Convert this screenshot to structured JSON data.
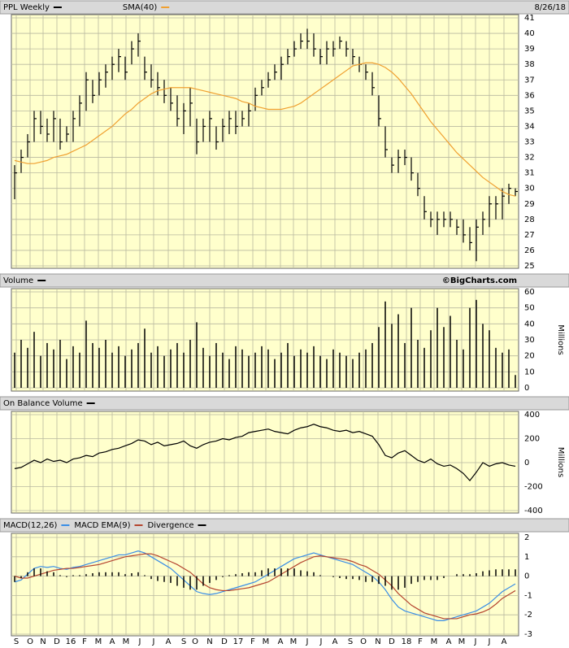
{
  "chart_data": [
    {
      "type": "hlc",
      "date": "8/26/18",
      "x": [
        0,
        2,
        4,
        6,
        8,
        10,
        12,
        14,
        16,
        18,
        20,
        22,
        24,
        26,
        28,
        30,
        32,
        34,
        36,
        38,
        40,
        42,
        44,
        46,
        48,
        50,
        52,
        54,
        56,
        58,
        60,
        62,
        64,
        66,
        68,
        70,
        72,
        74,
        76,
        78,
        80,
        82,
        84,
        86,
        88,
        90,
        92,
        94,
        96,
        98,
        100,
        102,
        104,
        106,
        108,
        110,
        112,
        114,
        116,
        118,
        120,
        122,
        124,
        126,
        128,
        130,
        132,
        134,
        136,
        138,
        140,
        142,
        144,
        146,
        148,
        150,
        152,
        154
      ],
      "xlim": [
        -1,
        155
      ],
      "ylim": [
        25,
        41
      ],
      "yticks": [
        25,
        26,
        27,
        28,
        29,
        30,
        31,
        32,
        33,
        34,
        35,
        36,
        37,
        38,
        39,
        40,
        41
      ],
      "grid": true,
      "series": [
        {
          "name": "PPL Weekly",
          "color": "#000000",
          "high": [
            31.5,
            32.5,
            33.5,
            35,
            35,
            34.5,
            35,
            34.5,
            34,
            35,
            36,
            37.5,
            37,
            37.5,
            38,
            38.5,
            39,
            38.5,
            39.5,
            40,
            38.5,
            38,
            37.5,
            37,
            36.5,
            36,
            35.5,
            36.5,
            34.5,
            34.5,
            35,
            34,
            34.5,
            35,
            35,
            35,
            35.5,
            36.5,
            37,
            37.5,
            38,
            38.5,
            39,
            39.5,
            40,
            40.3,
            40,
            39,
            39.5,
            39.5,
            39.8,
            39.5,
            39,
            38.5,
            38,
            37.5,
            36,
            34,
            32,
            32.5,
            32.5,
            32,
            31,
            29.5,
            28.5,
            28.5,
            28.5,
            28.5,
            28,
            28,
            27.5,
            28,
            28.5,
            29.5,
            29.5,
            30,
            30.3,
            30
          ],
          "low": [
            29.3,
            31,
            32,
            33,
            33.5,
            33,
            33,
            32.5,
            33,
            33,
            34,
            35,
            35.5,
            36,
            36.5,
            37,
            37.5,
            37,
            38,
            38.5,
            37,
            36.5,
            36,
            35.5,
            35,
            34,
            33.5,
            34,
            32.2,
            33,
            33,
            32.5,
            33,
            33.5,
            33.5,
            34,
            34,
            35,
            36,
            36.5,
            37,
            37,
            38,
            38.5,
            39,
            39,
            38.5,
            38,
            38,
            38.5,
            39,
            38.5,
            38,
            37.5,
            37,
            36,
            34,
            32,
            31,
            31,
            31.5,
            30.5,
            29.5,
            28,
            27.5,
            27,
            27.5,
            27.5,
            27,
            26.5,
            26,
            25.3,
            27,
            27.5,
            28,
            28,
            29,
            29.5
          ],
          "close": [
            31,
            32,
            33,
            34.5,
            34,
            33.5,
            34.5,
            33,
            33.5,
            34.5,
            35.5,
            37,
            36,
            37,
            37.5,
            38,
            38.5,
            37.5,
            39,
            39.5,
            37.5,
            37,
            36.5,
            36,
            35.5,
            34.5,
            35,
            35.5,
            33,
            34,
            34.5,
            33,
            34,
            34.5,
            34,
            34.5,
            35,
            36,
            36.5,
            37,
            37.5,
            38,
            38.5,
            39,
            39.5,
            39.5,
            39,
            38.5,
            39,
            39,
            39.5,
            39,
            38.5,
            38,
            37.5,
            36.5,
            34.5,
            32.5,
            31.5,
            32,
            32,
            31,
            30,
            28.5,
            28,
            28,
            28,
            28,
            27.5,
            27,
            26.5,
            27.5,
            28,
            29,
            29,
            29.5,
            30,
            29.8
          ]
        },
        {
          "name": "SMA(40)",
          "color": "#f0a030",
          "type": "line",
          "values": [
            31.8,
            31.7,
            31.6,
            31.6,
            31.7,
            31.8,
            32,
            32.1,
            32.2,
            32.4,
            32.6,
            32.8,
            33.1,
            33.4,
            33.7,
            34,
            34.4,
            34.8,
            35.1,
            35.5,
            35.8,
            36.1,
            36.3,
            36.4,
            36.5,
            36.5,
            36.5,
            36.5,
            36.4,
            36.3,
            36.2,
            36.1,
            36,
            35.9,
            35.8,
            35.6,
            35.5,
            35.3,
            35.2,
            35.1,
            35.1,
            35.1,
            35.2,
            35.3,
            35.5,
            35.8,
            36.1,
            36.4,
            36.7,
            37,
            37.3,
            37.6,
            37.9,
            38,
            38.1,
            38.1,
            38,
            37.8,
            37.5,
            37.1,
            36.6,
            36.1,
            35.5,
            34.9,
            34.3,
            33.8,
            33.3,
            32.8,
            32.3,
            31.9,
            31.5,
            31.1,
            30.7,
            30.4,
            30.1,
            29.8,
            29.6,
            29.5
          ]
        }
      ]
    },
    {
      "type": "bar",
      "credit": "©BigCharts.com",
      "ylabel": "Millions",
      "ylim": [
        0,
        60
      ],
      "yticks": [
        0,
        10,
        20,
        30,
        40,
        50,
        60
      ],
      "grid": true,
      "series": [
        {
          "name": "Volume",
          "color": "#000000",
          "values": [
            22,
            30,
            25,
            35,
            20,
            28,
            24,
            30,
            18,
            26,
            22,
            42,
            28,
            25,
            30,
            22,
            26,
            20,
            24,
            28,
            37,
            22,
            26,
            20,
            24,
            28,
            22,
            30,
            41,
            25,
            20,
            28,
            22,
            18,
            26,
            24,
            20,
            22,
            26,
            24,
            18,
            22,
            28,
            20,
            24,
            22,
            26,
            20,
            18,
            24,
            22,
            20,
            18,
            22,
            24,
            28,
            38,
            54,
            40,
            46,
            28,
            50,
            30,
            25,
            36,
            50,
            38,
            45,
            30,
            24,
            50,
            55,
            40,
            36,
            25,
            22,
            24,
            8
          ]
        }
      ]
    },
    {
      "type": "line",
      "ylabel": "Millions",
      "ylim": [
        -400,
        400
      ],
      "yticks": [
        -400,
        -200,
        0,
        200,
        400
      ],
      "grid": true,
      "series": [
        {
          "name": "On Balance Volume",
          "color": "#000000",
          "values": [
            -50,
            -40,
            -10,
            20,
            0,
            30,
            10,
            20,
            0,
            30,
            40,
            60,
            50,
            80,
            90,
            110,
            120,
            140,
            160,
            190,
            180,
            150,
            170,
            140,
            150,
            160,
            180,
            140,
            120,
            150,
            170,
            180,
            200,
            190,
            210,
            220,
            250,
            260,
            270,
            280,
            260,
            250,
            240,
            270,
            290,
            300,
            320,
            300,
            290,
            270,
            260,
            270,
            250,
            260,
            240,
            220,
            150,
            60,
            40,
            80,
            100,
            60,
            20,
            0,
            30,
            -10,
            -30,
            -20,
            -50,
            -90,
            -150,
            -80,
            0,
            -30,
            -10,
            0,
            -20,
            -30
          ]
        }
      ]
    },
    {
      "type": "line",
      "ylim": [
        -3,
        2
      ],
      "yticks": [
        -3,
        -2,
        -1,
        0,
        1,
        2
      ],
      "grid": true,
      "xticks": [
        {
          "value": 0.5,
          "label": "S"
        },
        {
          "value": 4.75,
          "label": "O"
        },
        {
          "value": 8.75,
          "label": "N"
        },
        {
          "value": 13,
          "label": "D"
        },
        {
          "value": 17.25,
          "label": "16"
        },
        {
          "value": 21.5,
          "label": "F"
        },
        {
          "value": 25.75,
          "label": "M"
        },
        {
          "value": 30,
          "label": "A"
        },
        {
          "value": 34.25,
          "label": "M"
        },
        {
          "value": 38.5,
          "label": "J"
        },
        {
          "value": 42.75,
          "label": "J"
        },
        {
          "value": 47.25,
          "label": "A"
        },
        {
          "value": 52,
          "label": "S"
        },
        {
          "value": 55.5,
          "label": "O"
        },
        {
          "value": 60,
          "label": "N"
        },
        {
          "value": 64.5,
          "label": "D"
        },
        {
          "value": 68.75,
          "label": "17"
        },
        {
          "value": 73.25,
          "label": "F"
        },
        {
          "value": 77.25,
          "label": "M"
        },
        {
          "value": 81.75,
          "label": "A"
        },
        {
          "value": 85.75,
          "label": "M"
        },
        {
          "value": 90,
          "label": "J"
        },
        {
          "value": 94.25,
          "label": "J"
        },
        {
          "value": 98.5,
          "label": "A"
        },
        {
          "value": 103.25,
          "label": "S"
        },
        {
          "value": 107.25,
          "label": "O"
        },
        {
          "value": 111.75,
          "label": "N"
        },
        {
          "value": 116,
          "label": "D"
        },
        {
          "value": 120.5,
          "label": "18"
        },
        {
          "value": 124.75,
          "label": "F"
        },
        {
          "value": 129,
          "label": "M"
        },
        {
          "value": 133.5,
          "label": "A"
        },
        {
          "value": 137.5,
          "label": "M"
        },
        {
          "value": 141.75,
          "label": "J"
        },
        {
          "value": 146,
          "label": "J"
        },
        {
          "value": 150.5,
          "label": "A"
        }
      ],
      "series": [
        {
          "name": "MACD(12,26)",
          "color": "#3a8ee6",
          "values": [
            -0.3,
            -0.2,
            0.1,
            0.4,
            0.5,
            0.45,
            0.5,
            0.4,
            0.35,
            0.45,
            0.5,
            0.6,
            0.7,
            0.8,
            0.9,
            1.0,
            1.1,
            1.1,
            1.2,
            1.3,
            1.2,
            1.0,
            0.8,
            0.6,
            0.4,
            0.1,
            -0.2,
            -0.5,
            -0.8,
            -0.9,
            -0.95,
            -0.9,
            -0.8,
            -0.7,
            -0.6,
            -0.5,
            -0.4,
            -0.3,
            -0.1,
            0.1,
            0.3,
            0.5,
            0.7,
            0.9,
            1.0,
            1.1,
            1.2,
            1.1,
            1.0,
            0.9,
            0.8,
            0.7,
            0.6,
            0.4,
            0.2,
            0,
            -0.3,
            -0.7,
            -1.2,
            -1.6,
            -1.8,
            -1.9,
            -2.0,
            -2.1,
            -2.2,
            -2.3,
            -2.3,
            -2.2,
            -2.1,
            -2.0,
            -1.9,
            -1.8,
            -1.6,
            -1.4,
            -1.1,
            -0.8,
            -0.6,
            -0.4
          ]
        },
        {
          "name": "MACD EMA(9)",
          "color": "#b5452f",
          "values": [
            0,
            -0.1,
            -0.1,
            0,
            0.1,
            0.2,
            0.3,
            0.35,
            0.4,
            0.4,
            0.45,
            0.5,
            0.55,
            0.6,
            0.7,
            0.8,
            0.9,
            1.0,
            1.05,
            1.1,
            1.15,
            1.15,
            1.05,
            0.9,
            0.75,
            0.6,
            0.4,
            0.2,
            -0.1,
            -0.4,
            -0.6,
            -0.7,
            -0.75,
            -0.75,
            -0.7,
            -0.65,
            -0.6,
            -0.5,
            -0.4,
            -0.3,
            -0.1,
            0.1,
            0.3,
            0.5,
            0.7,
            0.85,
            1.0,
            1.05,
            1.0,
            0.95,
            0.9,
            0.85,
            0.75,
            0.6,
            0.5,
            0.3,
            0.1,
            -0.2,
            -0.5,
            -0.9,
            -1.2,
            -1.5,
            -1.7,
            -1.9,
            -2.0,
            -2.1,
            -2.2,
            -2.2,
            -2.2,
            -2.1,
            -2.0,
            -1.95,
            -1.85,
            -1.7,
            -1.45,
            -1.15,
            -0.95,
            -0.75
          ]
        },
        {
          "name": "Divergence",
          "color": "#000000",
          "type": "bar",
          "values": [
            -0.3,
            -0.1,
            0.2,
            0.4,
            0.4,
            0.25,
            0.2,
            0.05,
            -0.05,
            0.05,
            0.05,
            0.1,
            0.15,
            0.2,
            0.2,
            0.2,
            0.2,
            0.1,
            0.15,
            0.2,
            0.05,
            -0.15,
            -0.25,
            -0.3,
            -0.35,
            -0.5,
            -0.6,
            -0.7,
            -0.7,
            -0.5,
            -0.35,
            -0.2,
            -0.05,
            0.05,
            0.1,
            0.15,
            0.2,
            0.2,
            0.3,
            0.4,
            0.4,
            0.4,
            0.4,
            0.4,
            0.3,
            0.25,
            0.2,
            0.05,
            0,
            -0.05,
            -0.1,
            -0.15,
            -0.15,
            -0.2,
            -0.3,
            -0.3,
            -0.4,
            -0.5,
            -0.7,
            -0.7,
            -0.6,
            -0.4,
            -0.3,
            -0.2,
            -0.2,
            -0.2,
            -0.1,
            0,
            0.1,
            0.1,
            0.1,
            0.15,
            0.25,
            0.3,
            0.35,
            0.35,
            0.35,
            0.35
          ]
        }
      ]
    }
  ]
}
